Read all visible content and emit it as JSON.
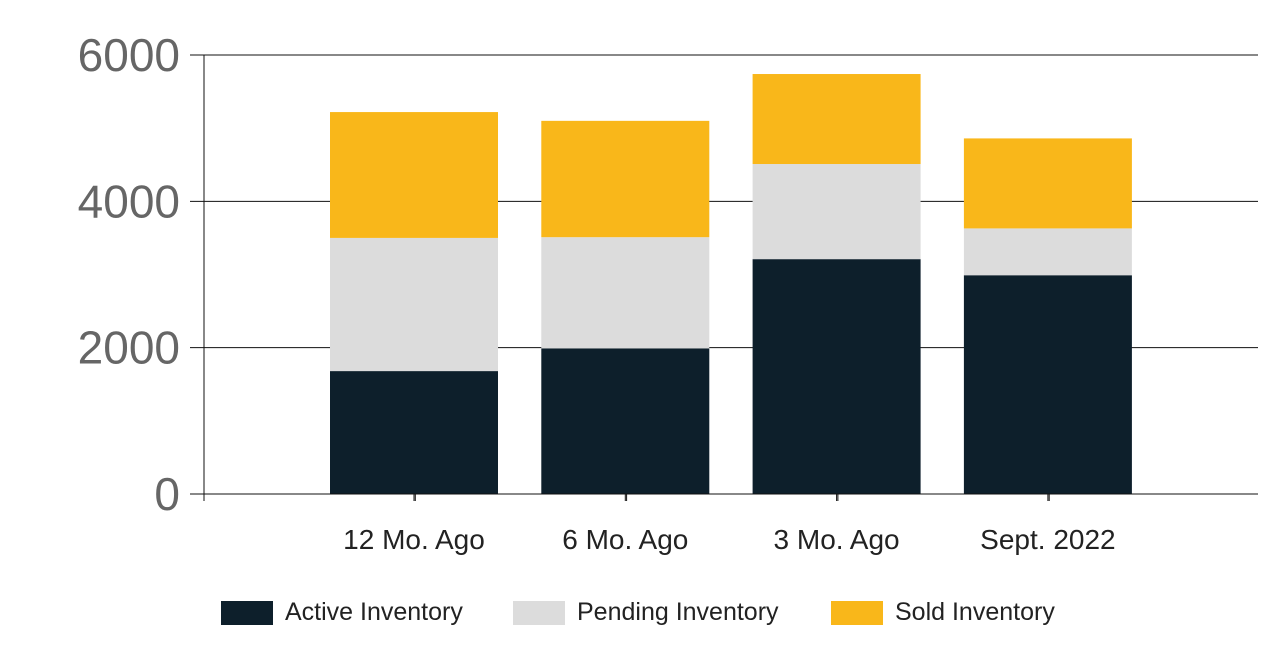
{
  "chart_data": {
    "type": "bar",
    "stacked": true,
    "categories": [
      "12 Mo. Ago",
      "6 Mo. Ago",
      "3 Mo. Ago",
      "Sept. 2022"
    ],
    "series": [
      {
        "name": "Active Inventory",
        "color": "#0d1f2b",
        "values": [
          1680,
          1990,
          3210,
          2990
        ]
      },
      {
        "name": "Pending Inventory",
        "color": "#dcdcdc",
        "values": [
          1820,
          1520,
          1300,
          640
        ]
      },
      {
        "name": "Sold Inventory",
        "color": "#f9b71a",
        "values": [
          1720,
          1590,
          1230,
          1230
        ]
      }
    ],
    "yticks": [
      "0",
      "2000",
      "4000",
      "6000"
    ],
    "ylim": [
      0,
      6000
    ],
    "grid": true,
    "legend_position": "bottom",
    "title": "",
    "xlabel": "",
    "ylabel": ""
  }
}
